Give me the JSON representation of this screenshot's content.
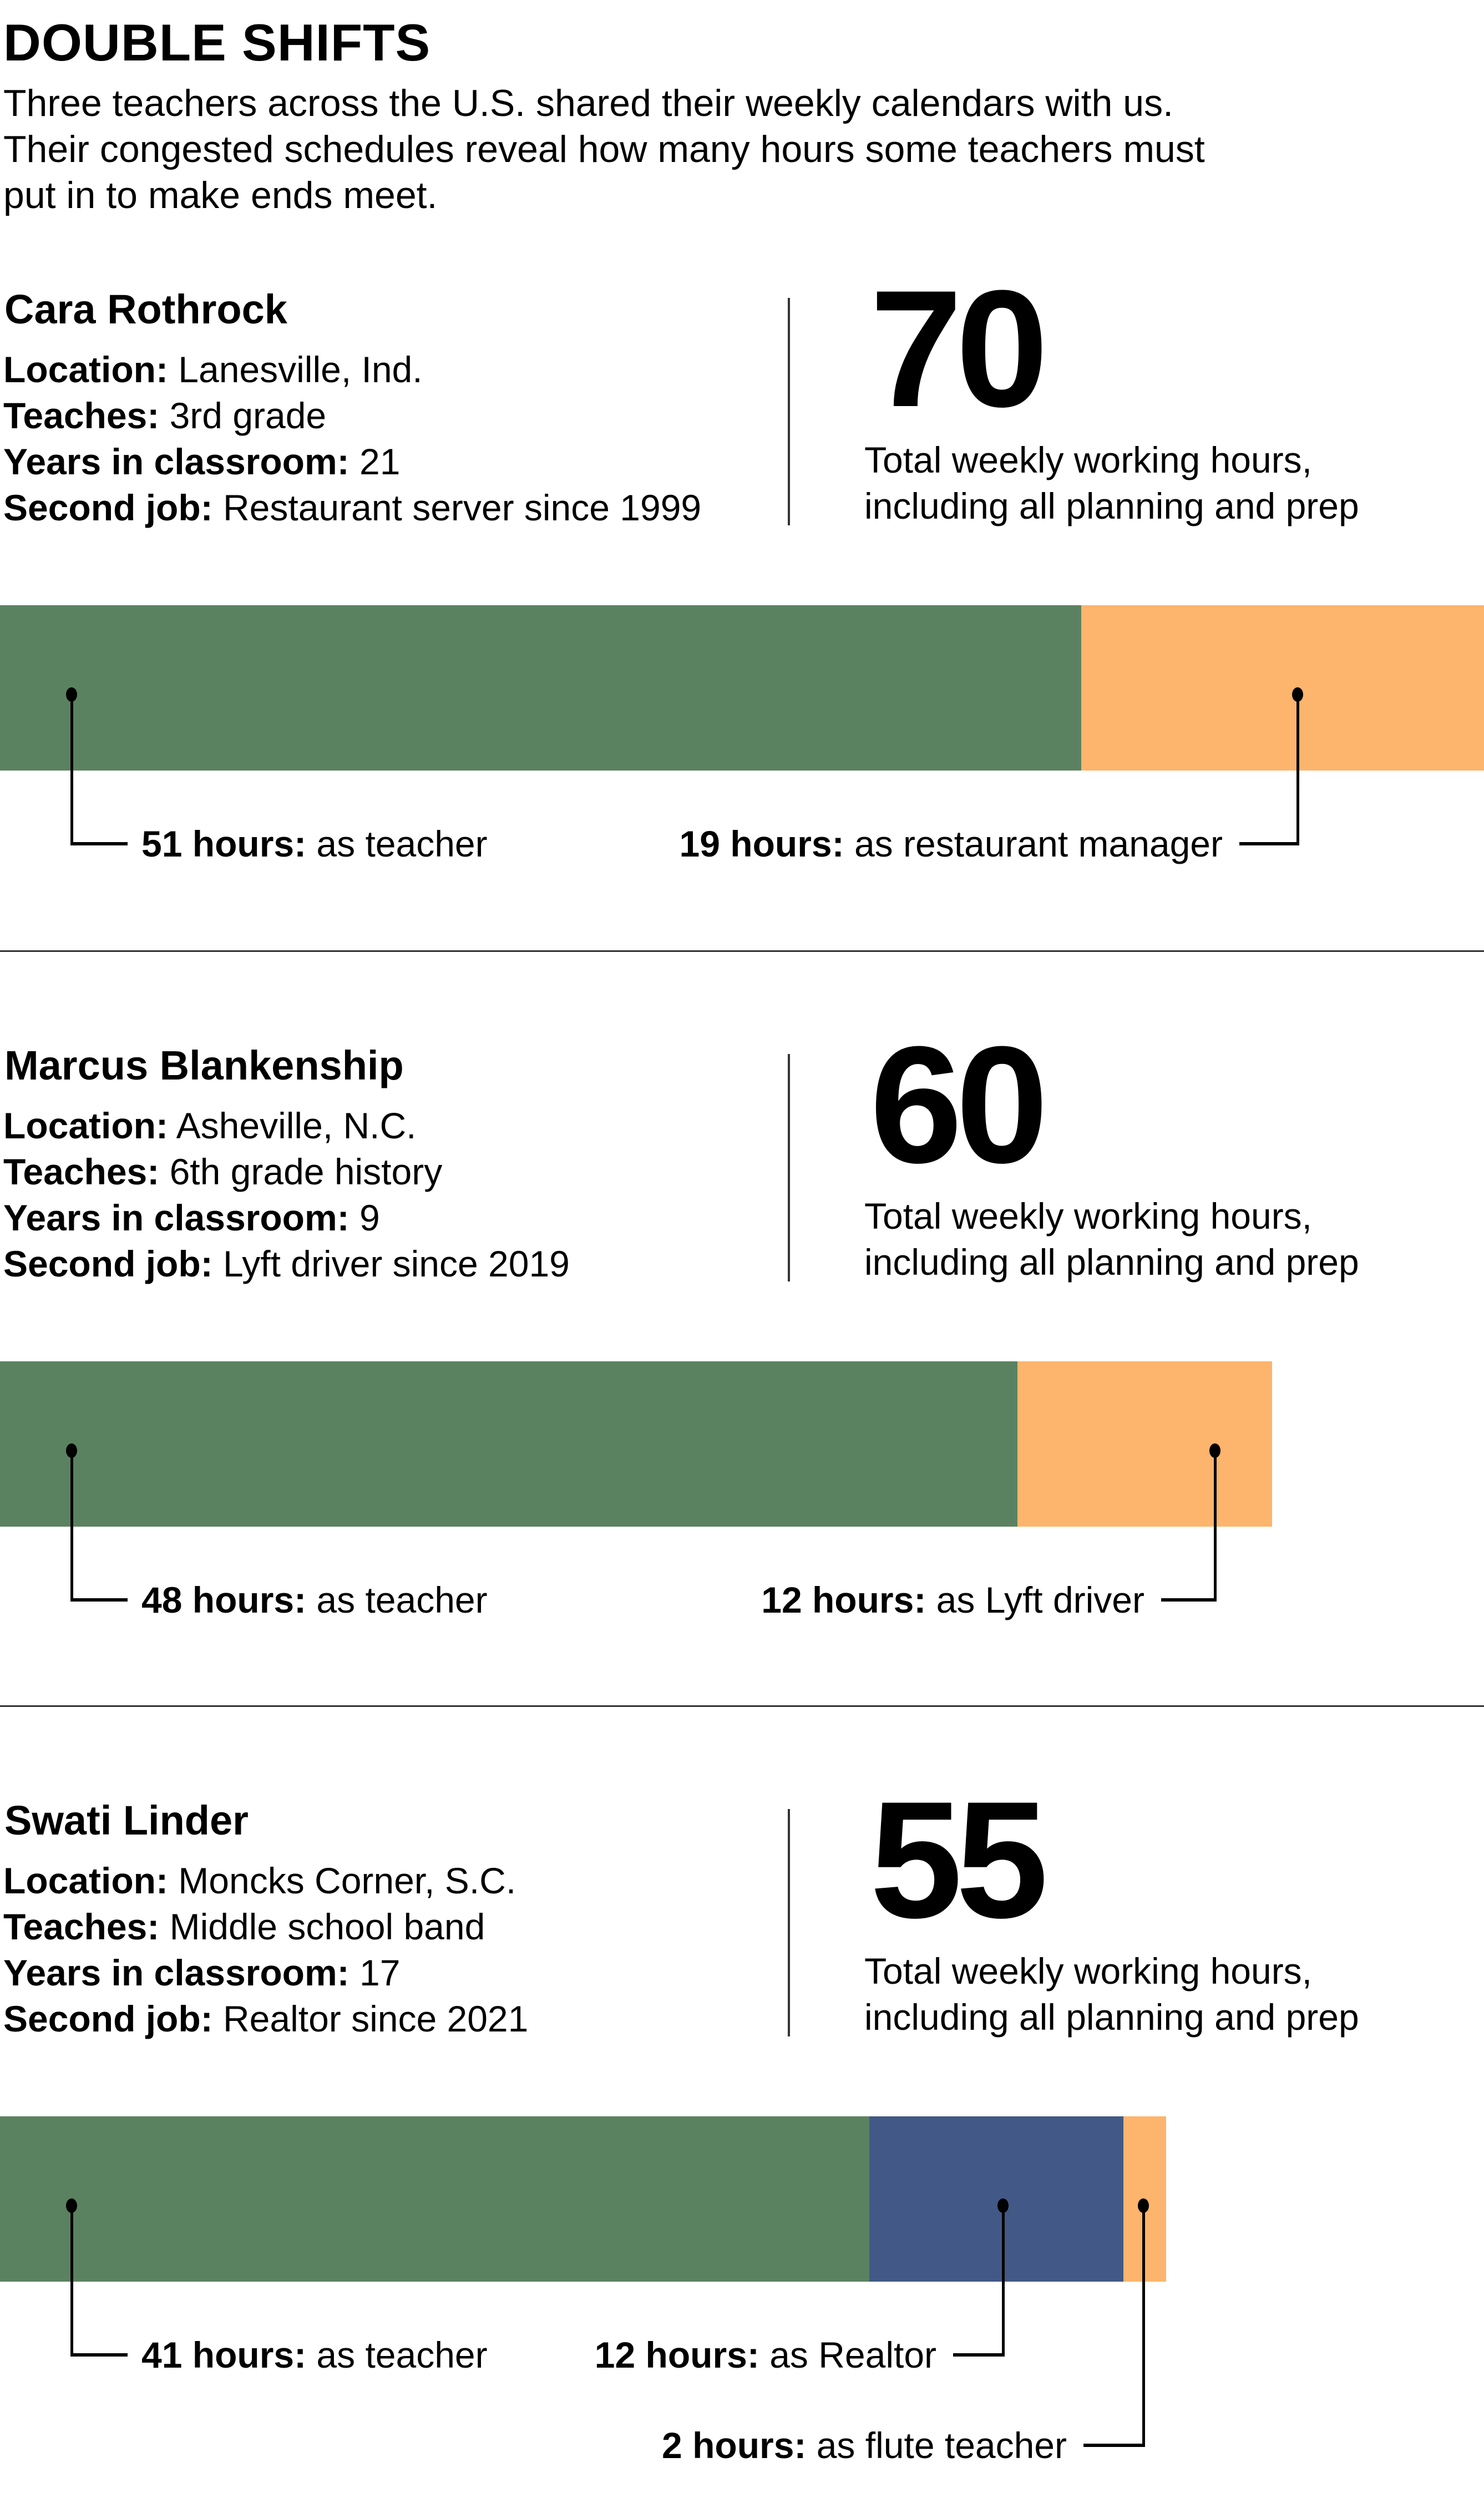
{
  "title": "DOUBLE SHIFTS",
  "intro": [
    "Three teachers across the U.S. shared their weekly calendars with us.",
    "Their congested schedules reveal how many hours some teachers must",
    "put in to make ends meet."
  ],
  "colors": {
    "teacher": "#5b8260",
    "second_job": "#fdb46c",
    "realtor": "#425886"
  },
  "profiles": [
    {
      "name": "Cara Rothrock",
      "fields": [
        {
          "label": "Location:",
          "value": " Lanesville, Ind."
        },
        {
          "label": "Teaches:",
          "value": " 3rd grade"
        },
        {
          "label": "Years in classroom:",
          "value": " 21"
        },
        {
          "label": "Second job:",
          "value": " Restaurant server since 1999"
        }
      ],
      "total": "70",
      "caption": [
        "Total weekly working hours,",
        "including all planning and prep"
      ]
    },
    {
      "name": "Marcus Blankenship",
      "fields": [
        {
          "label": "Location:",
          "value": " Asheville, N.C."
        },
        {
          "label": "Teaches:",
          "value": " 6th grade history"
        },
        {
          "label": "Years in classroom:",
          "value": " 9"
        },
        {
          "label": "Second job:",
          "value": " Lyft driver since 2019"
        }
      ],
      "total": "60",
      "caption": [
        "Total weekly working hours,",
        "including all planning and prep"
      ]
    },
    {
      "name": "Swati Linder",
      "fields": [
        {
          "label": "Location:",
          "value": " Moncks Corner, S.C."
        },
        {
          "label": "Teaches:",
          "value": " Middle school band"
        },
        {
          "label": "Years in classroom:",
          "value": " 17"
        },
        {
          "label": "Second job:",
          "value": " Realtor since 2021"
        }
      ],
      "total": "55",
      "caption": [
        "Total weekly working hours,",
        "including all planning and prep"
      ]
    }
  ],
  "chart_data": {
    "type": "bar",
    "orientation": "horizontal-stacked",
    "xlim": [
      0,
      70
    ],
    "grid": false,
    "categories": [
      "Cara Rothrock",
      "Marcus Blankenship",
      "Swati Linder"
    ],
    "stacks": [
      [
        {
          "hours": 51,
          "bold": "51 hours:",
          "text": " as teacher",
          "color": "#5b8260"
        },
        {
          "hours": 19,
          "bold": "19 hours:",
          "text": " as restaurant manager",
          "color": "#fdb46c"
        }
      ],
      [
        {
          "hours": 48,
          "bold": "48 hours:",
          "text": " as teacher",
          "color": "#5b8260"
        },
        {
          "hours": 12,
          "bold": "12 hours:",
          "text": " as Lyft driver",
          "color": "#fdb46c"
        }
      ],
      [
        {
          "hours": 41,
          "bold": "41 hours:",
          "text": " as teacher",
          "color": "#5b8260"
        },
        {
          "hours": 12,
          "bold": "12 hours:",
          "text": " as Realtor",
          "color": "#425886"
        },
        {
          "hours": 2,
          "bold": "2 hours:",
          "text": " as flute teacher",
          "color": "#fdb46c"
        }
      ]
    ]
  }
}
